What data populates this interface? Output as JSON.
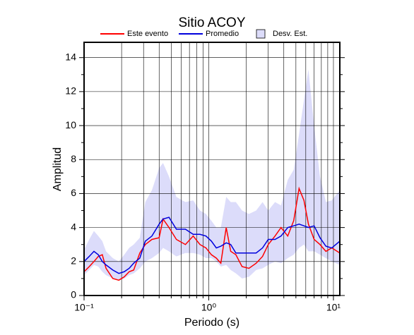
{
  "chart_data": {
    "type": "line",
    "title": "Sitio ACOY",
    "x_label": "Periodo (s)",
    "y_label": "Amplitud",
    "x_scale": "log",
    "grid": true,
    "xlim": [
      0.1,
      11.25
    ],
    "ylim": [
      0,
      14.9
    ],
    "xticks": [
      {
        "value": 0.1,
        "label": "10⁻¹"
      },
      {
        "value": 1,
        "label": "10⁰"
      },
      {
        "value": 10,
        "label": "10¹"
      }
    ],
    "xminorticks": [
      0.2,
      0.3,
      0.4,
      0.5,
      0.6,
      0.7,
      0.8,
      0.9,
      2,
      3,
      4,
      5,
      6,
      7,
      8,
      9
    ],
    "yticks": [
      0,
      2,
      4,
      6,
      8,
      10,
      12,
      14
    ],
    "yminorticks": [
      1,
      3,
      5,
      7,
      9,
      11,
      13
    ],
    "x": [
      0.1,
      0.11,
      0.12,
      0.13,
      0.14,
      0.15,
      0.17,
      0.19,
      0.21,
      0.23,
      0.25,
      0.28,
      0.31,
      0.35,
      0.4,
      0.43,
      0.48,
      0.55,
      0.65,
      0.75,
      0.85,
      0.95,
      1.05,
      1.15,
      1.25,
      1.38,
      1.5,
      1.65,
      1.85,
      2.1,
      2.4,
      2.7,
      3.0,
      3.4,
      3.8,
      4.3,
      4.8,
      5.3,
      5.8,
      6.3,
      7.0,
      7.8,
      8.7,
      9.7,
      11.25
    ],
    "band": {
      "name": "Desv. Est.",
      "color": "#dcdcfa",
      "lower": [
        1.2,
        1.5,
        1.8,
        1.7,
        1.4,
        1.2,
        1.0,
        0.9,
        1.0,
        1.2,
        1.3,
        1.6,
        2.0,
        2.2,
        2.5,
        2.8,
        2.6,
        2.3,
        2.5,
        2.5,
        2.4,
        2.2,
        2.2,
        2.0,
        1.7,
        1.8,
        1.5,
        1.3,
        1.0,
        1.1,
        1.5,
        1.6,
        1.8,
        2.0,
        1.9,
        2.2,
        2.4,
        2.8,
        3.0,
        2.6,
        2.6,
        2.4,
        2.2,
        2.0,
        1.8
      ],
      "upper": [
        2.7,
        3.3,
        3.8,
        3.5,
        3.2,
        2.6,
        2.2,
        2.0,
        2.4,
        2.8,
        3.0,
        3.4,
        5.5,
        6.2,
        7.5,
        7.8,
        7.0,
        5.8,
        5.5,
        5.6,
        5.0,
        4.8,
        4.4,
        4.0,
        4.0,
        5.8,
        5.5,
        5.5,
        5.0,
        4.8,
        5.0,
        5.5,
        5.0,
        5.5,
        5.3,
        6.8,
        7.4,
        9.5,
        11.5,
        13.3,
        10,
        7.0,
        5.5,
        5.6,
        6.2
      ]
    },
    "series": [
      {
        "name": "Este evento",
        "color": "#ff0000",
        "values": [
          1.4,
          1.7,
          2.0,
          2.3,
          2.4,
          1.6,
          1.0,
          0.9,
          1.1,
          1.4,
          1.5,
          2.5,
          3.0,
          3.3,
          3.4,
          4.5,
          4.0,
          3.3,
          3.0,
          3.5,
          3.0,
          2.8,
          2.4,
          2.2,
          1.9,
          4.0,
          2.6,
          2.4,
          1.7,
          1.6,
          1.9,
          2.3,
          3.0,
          3.5,
          4.0,
          3.5,
          4.4,
          6.3,
          5.6,
          4.2,
          3.3,
          3.0,
          2.6,
          2.8,
          2.5
        ]
      },
      {
        "name": "Promedio",
        "color": "#0000dd",
        "values": [
          2.0,
          2.3,
          2.6,
          2.4,
          2.0,
          1.8,
          1.5,
          1.3,
          1.4,
          1.6,
          1.9,
          2.2,
          3.2,
          3.5,
          4.2,
          4.5,
          4.6,
          3.9,
          3.9,
          3.6,
          3.6,
          3.5,
          3.2,
          2.8,
          2.9,
          3.1,
          3.0,
          2.5,
          2.5,
          2.5,
          2.5,
          2.8,
          3.3,
          3.3,
          3.5,
          4.0,
          4.1,
          4.2,
          4.1,
          4.0,
          4.1,
          3.4,
          2.9,
          2.8,
          3.2
        ]
      }
    ]
  }
}
